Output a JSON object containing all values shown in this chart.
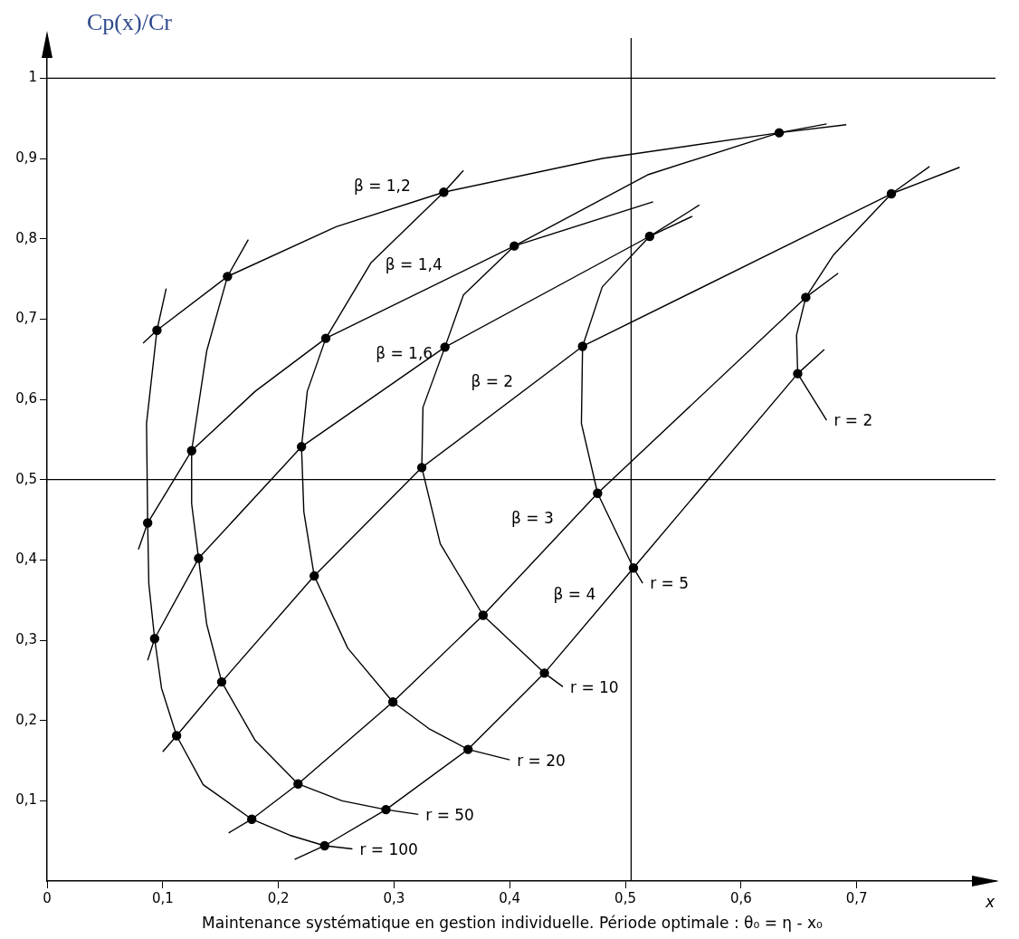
{
  "chart_data": {
    "type": "line",
    "ylabel": "Cp(x)/Cr",
    "xlabel": "x",
    "xlim": [
      0,
      0.82
    ],
    "ylim": [
      0,
      1.05
    ],
    "xticks": [
      {
        "value": 0,
        "label": "0"
      },
      {
        "value": 0.1,
        "label": "0,1"
      },
      {
        "value": 0.2,
        "label": "0,2"
      },
      {
        "value": 0.3,
        "label": "0,3"
      },
      {
        "value": 0.4,
        "label": "0,4"
      },
      {
        "value": 0.5,
        "label": "0,5"
      },
      {
        "value": 0.6,
        "label": "0,6"
      },
      {
        "value": 0.7,
        "label": "0,7"
      }
    ],
    "yticks": [
      {
        "value": 0.1,
        "label": "0,1"
      },
      {
        "value": 0.2,
        "label": "0,2"
      },
      {
        "value": 0.3,
        "label": "0,3"
      },
      {
        "value": 0.4,
        "label": "0,4"
      },
      {
        "value": 0.5,
        "label": "0,5"
      },
      {
        "value": 0.6,
        "label": "0,6"
      },
      {
        "value": 0.7,
        "label": "0,7"
      },
      {
        "value": 0.8,
        "label": "0,8"
      },
      {
        "value": 0.9,
        "label": "0,9"
      },
      {
        "value": 1,
        "label": "1"
      }
    ],
    "grid": false,
    "legend": false,
    "ref_lines": [
      {
        "axis": "y",
        "value": 1
      },
      {
        "axis": "y",
        "value": 0.5
      },
      {
        "axis": "x",
        "value": 0.505
      }
    ],
    "annotations": [
      "Maintenance systématique en gestion individuelle. Période optimale : θ₀ = η - x₀"
    ],
    "series": [
      {
        "name": "β = 1,2",
        "color": "#000000",
        "marker": "none",
        "x": [
          0.083,
          0.095,
          0.156,
          0.25,
          0.343,
          0.48,
          0.633,
          0.691
        ],
        "values": [
          0.67,
          0.686,
          0.753,
          0.815,
          0.858,
          0.9,
          0.932,
          0.942
        ]
      },
      {
        "name": "β = 1,4",
        "color": "#000000",
        "marker": "none",
        "x": [
          0.079,
          0.087,
          0.125,
          0.18,
          0.241,
          0.404,
          0.524
        ],
        "values": [
          0.413,
          0.446,
          0.536,
          0.61,
          0.676,
          0.791,
          0.846
        ]
      },
      {
        "name": "β = 1,6",
        "color": "#000000",
        "marker": "none",
        "x": [
          0.087,
          0.093,
          0.131,
          0.22,
          0.344,
          0.521,
          0.558
        ],
        "values": [
          0.275,
          0.302,
          0.402,
          0.541,
          0.665,
          0.803,
          0.828
        ]
      },
      {
        "name": "β = 2",
        "color": "#000000",
        "marker": "none",
        "x": [
          0.1,
          0.112,
          0.151,
          0.231,
          0.324,
          0.463,
          0.73,
          0.789
        ],
        "values": [
          0.161,
          0.181,
          0.248,
          0.38,
          0.515,
          0.666,
          0.856,
          0.889
        ]
      },
      {
        "name": "β = 3",
        "color": "#000000",
        "marker": "none",
        "x": [
          0.157,
          0.177,
          0.217,
          0.299,
          0.377,
          0.476,
          0.656,
          0.684
        ],
        "values": [
          0.06,
          0.077,
          0.121,
          0.223,
          0.331,
          0.483,
          0.727,
          0.757
        ]
      },
      {
        "name": "β = 4",
        "color": "#000000",
        "marker": "none",
        "x": [
          0.214,
          0.24,
          0.293,
          0.364,
          0.43,
          0.507,
          0.649,
          0.672
        ],
        "values": [
          0.027,
          0.044,
          0.089,
          0.164,
          0.259,
          0.39,
          0.632,
          0.662
        ]
      },
      {
        "name": "r = 2",
        "color": "#000000",
        "marker": "none",
        "x": [
          0.763,
          0.73,
          0.68,
          0.656,
          0.648,
          0.649,
          0.674
        ],
        "values": [
          0.89,
          0.856,
          0.78,
          0.727,
          0.68,
          0.632,
          0.574
        ]
      },
      {
        "name": "r = 5",
        "color": "#000000",
        "marker": "none",
        "x": [
          0.564,
          0.521,
          0.48,
          0.463,
          0.462,
          0.476,
          0.507,
          0.515
        ],
        "values": [
          0.842,
          0.803,
          0.74,
          0.666,
          0.57,
          0.483,
          0.39,
          0.371
        ]
      },
      {
        "name": "r = 10",
        "color": "#000000",
        "marker": "none",
        "x": [
          0.674,
          0.633,
          0.52,
          0.404,
          0.36,
          0.344,
          0.325,
          0.324,
          0.34,
          0.377,
          0.43,
          0.446
        ],
        "values": [
          0.943,
          0.932,
          0.88,
          0.791,
          0.73,
          0.665,
          0.59,
          0.515,
          0.42,
          0.331,
          0.259,
          0.242
        ]
      },
      {
        "name": "r = 20",
        "color": "#000000",
        "marker": "none",
        "x": [
          0.36,
          0.343,
          0.28,
          0.241,
          0.225,
          0.22,
          0.222,
          0.231,
          0.26,
          0.299,
          0.33,
          0.364,
          0.4
        ],
        "values": [
          0.885,
          0.858,
          0.77,
          0.676,
          0.61,
          0.541,
          0.46,
          0.38,
          0.29,
          0.223,
          0.19,
          0.164,
          0.151
        ]
      },
      {
        "name": "r = 50",
        "color": "#000000",
        "marker": "none",
        "x": [
          0.174,
          0.156,
          0.138,
          0.125,
          0.125,
          0.131,
          0.138,
          0.151,
          0.18,
          0.217,
          0.255,
          0.293,
          0.321
        ],
        "values": [
          0.799,
          0.753,
          0.66,
          0.536,
          0.47,
          0.402,
          0.32,
          0.248,
          0.175,
          0.121,
          0.1,
          0.089,
          0.083
        ]
      },
      {
        "name": "r = 100",
        "color": "#000000",
        "marker": "none",
        "x": [
          0.103,
          0.095,
          0.086,
          0.087,
          0.088,
          0.093,
          0.099,
          0.112,
          0.135,
          0.177,
          0.21,
          0.24,
          0.264
        ],
        "values": [
          0.738,
          0.686,
          0.57,
          0.446,
          0.37,
          0.302,
          0.24,
          0.181,
          0.12,
          0.077,
          0.057,
          0.044,
          0.04
        ]
      },
      {
        "type": "scatter",
        "color": "#000000",
        "marker": "circle",
        "x": [
          0.095,
          0.087,
          0.093,
          0.112,
          0.177,
          0.24,
          0.156,
          0.125,
          0.131,
          0.151,
          0.217,
          0.293,
          0.343,
          0.241,
          0.22,
          0.231,
          0.299,
          0.364,
          0.633,
          0.404,
          0.344,
          0.324,
          0.377,
          0.43,
          0.521,
          0.463,
          0.476,
          0.507,
          0.73,
          0.656,
          0.649
        ],
        "values": [
          0.686,
          0.446,
          0.302,
          0.181,
          0.077,
          0.044,
          0.753,
          0.536,
          0.402,
          0.248,
          0.121,
          0.089,
          0.858,
          0.676,
          0.541,
          0.38,
          0.223,
          0.164,
          0.932,
          0.791,
          0.665,
          0.515,
          0.331,
          0.259,
          0.803,
          0.666,
          0.483,
          0.39,
          0.856,
          0.727,
          0.632
        ]
      }
    ]
  }
}
